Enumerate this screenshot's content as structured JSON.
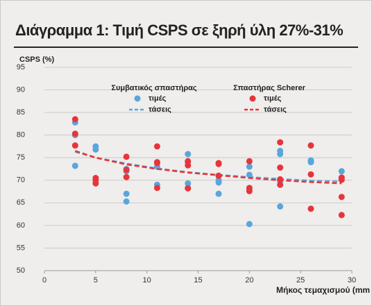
{
  "chart_data": {
    "type": "scatter",
    "title": "Διάγραμμα 1: Τιμή CSPS σε ξηρή ύλη 27%-31%",
    "y_label": "CSPS (%)",
    "x_label": "Μήκος τεμαχισμού (mm",
    "xlim": [
      0,
      30
    ],
    "xticks": [
      0,
      5,
      10,
      15,
      20,
      25,
      30
    ],
    "ylim": [
      50,
      95
    ],
    "yticks": [
      50,
      55,
      60,
      65,
      70,
      75,
      80,
      85,
      90,
      95
    ],
    "grid": true,
    "groups": [
      {
        "name": "Συμβατικός σπαστήρας",
        "series": [
          {
            "name": "τιμές",
            "style": "points",
            "color": "#5aa6dc",
            "x": [
              3,
              3,
              3,
              5,
              5,
              8,
              8,
              8,
              8,
              11,
              11,
              14,
              14,
              14,
              14,
              17,
              17,
              17,
              17,
              20,
              20,
              20,
              20,
              23,
              23,
              23,
              23,
              23,
              26,
              26,
              26,
              29,
              29
            ],
            "values": [
              82.8,
              80,
              73.2,
              77.5,
              76.8,
              67,
              65.3,
              72.5,
              72,
              73,
              69,
              75.8,
              74,
              69.3,
              68.3,
              71,
              70,
              69.5,
              67,
              73,
              71.2,
              60.3,
              68,
              76.5,
              75.8,
              64.2,
              69.8,
              70,
              74.4,
              74,
              74.2,
              72,
              70.5
            ]
          },
          {
            "name": "τάσεις",
            "style": "dashed-line",
            "color": "#5aa6dc",
            "x": [
              3,
              5,
              8,
              11,
              14,
              17,
              20,
              23,
              26,
              29
            ],
            "values": [
              76.3,
              75,
              73.7,
              72.6,
              71.8,
              71.2,
              70.7,
              70.3,
              69.9,
              69.7
            ]
          }
        ]
      },
      {
        "name": "Σπαστήρας Scherer",
        "series": [
          {
            "name": "τιμές",
            "style": "points",
            "color": "#e8343a",
            "x": [
              3,
              3,
              3,
              5,
              5,
              5,
              8,
              8,
              8,
              11,
              11,
              11,
              11,
              14,
              14,
              14,
              17,
              17,
              17,
              20,
              20,
              20,
              23,
              23,
              23,
              23,
              26,
              26,
              26,
              29,
              29,
              29,
              29
            ],
            "values": [
              83.5,
              80.3,
              77.7,
              70.5,
              69.3,
              70,
              75.2,
              72.3,
              70.7,
              77.5,
              74,
              73.8,
              68.3,
              74.2,
              73.3,
              68.2,
              73.8,
              73.6,
              71,
              74.2,
              68.3,
              67.6,
              78.4,
              72.8,
              70.2,
              69,
              77.7,
              71.3,
              63.7,
              70.6,
              66.3,
              62.3,
              70.1
            ]
          },
          {
            "name": "τάσεις",
            "style": "dashed-line",
            "color": "#e8343a",
            "x": [
              3,
              5,
              8,
              11,
              14,
              17,
              20,
              23,
              26,
              29
            ],
            "values": [
              76.5,
              75,
              73.5,
              72.5,
              71.7,
              71.1,
              70.5,
              70,
              69.6,
              69.3
            ]
          }
        ]
      }
    ]
  }
}
